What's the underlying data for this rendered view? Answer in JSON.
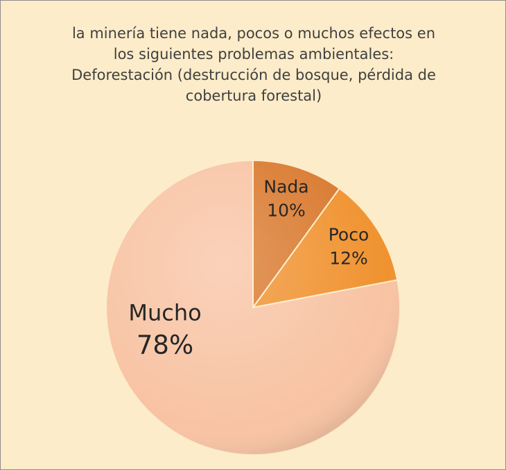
{
  "chart_data": {
    "type": "pie",
    "title": "la minería tiene nada, pocos o muchos efectos en los siguientes problemas ambientales: Deforestación (destrucción de bosque, pérdida de cobertura forestal)",
    "categories": [
      "Nada",
      "Poco",
      "Mucho"
    ],
    "values": [
      10,
      12,
      78
    ],
    "value_labels": [
      "10%",
      "12%",
      "78%"
    ],
    "colors": [
      "#d9782c",
      "#f0922f",
      "#f8c3a3"
    ]
  }
}
